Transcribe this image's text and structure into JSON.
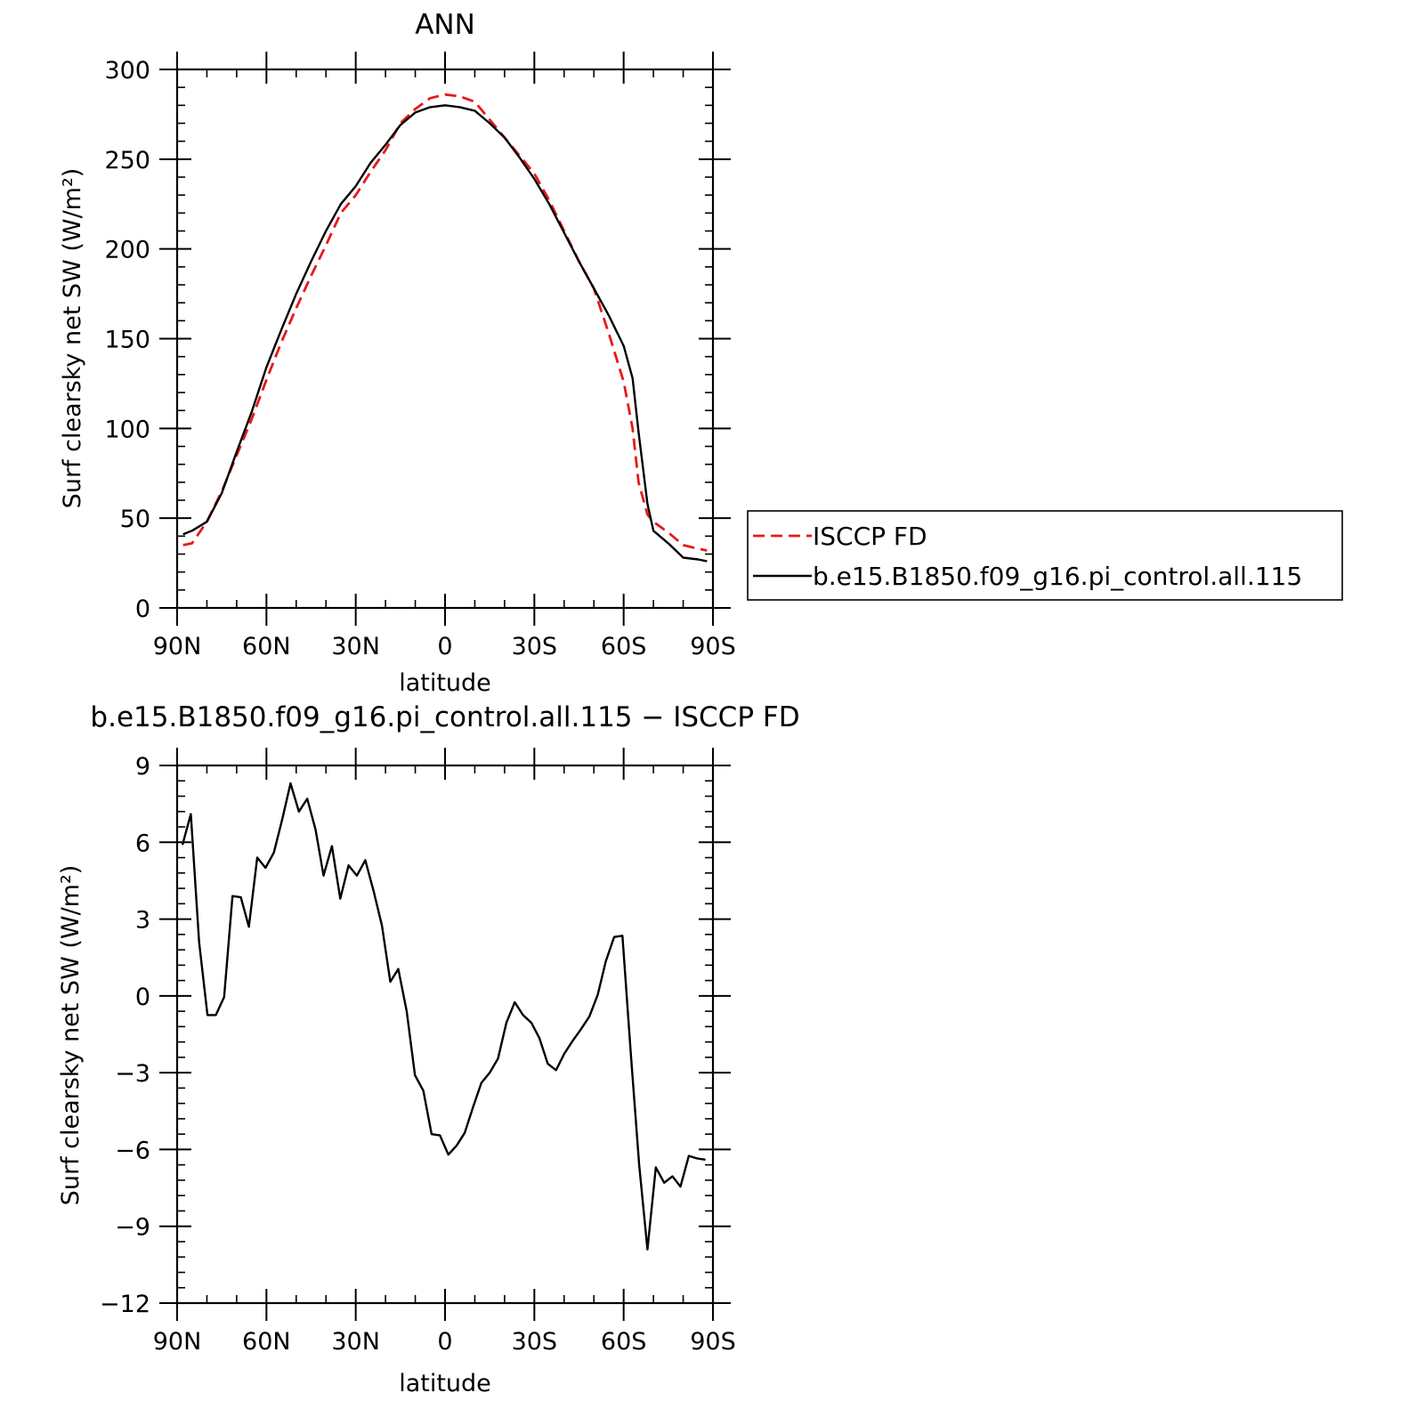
{
  "chart_data": [
    {
      "type": "line",
      "title": "ANN",
      "xlabel": "latitude",
      "ylabel": "Surf clearsky net SW (W/m²)",
      "xlim": [
        90,
        -90
      ],
      "ylim": [
        0,
        300
      ],
      "yticks": [
        0,
        50,
        100,
        150,
        200,
        250,
        300
      ],
      "xticks": [
        {
          "value": 90,
          "label": "90N"
        },
        {
          "value": 60,
          "label": "60N"
        },
        {
          "value": 30,
          "label": "30N"
        },
        {
          "value": 0,
          "label": "0"
        },
        {
          "value": -30,
          "label": "30S"
        },
        {
          "value": -60,
          "label": "60S"
        },
        {
          "value": -90,
          "label": "90S"
        }
      ],
      "legend": {
        "position": "right",
        "entries": [
          "ISCCP FD",
          "b.e15.B1850.f09_g16.pi_control.all.115"
        ]
      },
      "series": [
        {
          "name": "ISCCP FD",
          "color": "#e8191b",
          "dash": "dashed",
          "x": [
            88,
            85,
            80,
            75,
            70,
            65,
            60,
            55,
            50,
            45,
            40,
            35,
            30,
            25,
            20,
            15,
            10,
            5,
            0,
            -5,
            -10,
            -15,
            -20,
            -25,
            -30,
            -35,
            -40,
            -45,
            -50,
            -55,
            -60,
            -63,
            -65,
            -68,
            -70,
            -75,
            -80,
            -85,
            -88
          ],
          "y": [
            35,
            36,
            48,
            65,
            85,
            105,
            127,
            148,
            167,
            185,
            202,
            220,
            230,
            243,
            255,
            270,
            278,
            284,
            286,
            285,
            282,
            272,
            262,
            252,
            242,
            227,
            210,
            193,
            178,
            153,
            126,
            100,
            70,
            52,
            48,
            42,
            35,
            33,
            32
          ]
        },
        {
          "name": "b.e15.B1850.f09_g16.pi_control.all.115",
          "color": "#000000",
          "dash": "solid",
          "x": [
            88,
            85,
            80,
            75,
            70,
            65,
            60,
            55,
            50,
            45,
            40,
            35,
            30,
            25,
            20,
            15,
            10,
            5,
            0,
            -5,
            -10,
            -15,
            -20,
            -25,
            -30,
            -35,
            -40,
            -45,
            -50,
            -55,
            -60,
            -63,
            -65,
            -68,
            -70,
            -75,
            -80,
            -85,
            -88
          ],
          "y": [
            41,
            43,
            48,
            64,
            87,
            109,
            134,
            155,
            175,
            193,
            210,
            225,
            235,
            248,
            258,
            269,
            276,
            279,
            280,
            279,
            277,
            270,
            262,
            251,
            239,
            225,
            209,
            193,
            178,
            163,
            146,
            128,
            98,
            58,
            43,
            36,
            28,
            27,
            26
          ]
        }
      ]
    },
    {
      "type": "line",
      "title": "b.e15.B1850.f09_g16.pi_control.all.115 − ISCCP FD",
      "xlabel": "latitude",
      "ylabel": "Surf clearsky net SW (W/m²)",
      "xlim": [
        90,
        -90
      ],
      "ylim": [
        -12,
        9
      ],
      "yticks": [
        -12,
        -9,
        -6,
        -3,
        0,
        3,
        6,
        9
      ],
      "xticks": [
        {
          "value": 90,
          "label": "90N"
        },
        {
          "value": 60,
          "label": "60N"
        },
        {
          "value": 30,
          "label": "30N"
        },
        {
          "value": 0,
          "label": "0"
        },
        {
          "value": -30,
          "label": "30S"
        },
        {
          "value": -60,
          "label": "60S"
        },
        {
          "value": -90,
          "label": "90S"
        }
      ],
      "series": [
        {
          "color": "#000000",
          "dash": "solid",
          "x": [
            88.2,
            85.4,
            82.6,
            79.8,
            77.0,
            74.2,
            71.4,
            68.6,
            65.9,
            63.1,
            60.3,
            57.5,
            54.7,
            51.9,
            49.1,
            46.3,
            43.5,
            40.8,
            38.0,
            35.2,
            32.4,
            29.6,
            26.8,
            24.0,
            21.2,
            18.4,
            15.7,
            12.9,
            10.1,
            7.3,
            4.5,
            1.7,
            -1.1,
            -3.9,
            -6.6,
            -9.4,
            -12.2,
            -15.0,
            -17.8,
            -20.6,
            -23.4,
            -26.2,
            -29.0,
            -31.7,
            -34.5,
            -37.3,
            -40.1,
            -42.9,
            -45.7,
            -48.5,
            -51.3,
            -54.0,
            -56.8,
            -59.6,
            -62.4,
            -65.2,
            -68.0,
            -70.8,
            -73.6,
            -76.4,
            -79.1,
            -81.9,
            -84.7,
            -87.5
          ],
          "y": [
            5.9,
            7.1,
            2.1,
            -0.75,
            -0.75,
            -0.05,
            3.9,
            3.85,
            2.7,
            5.4,
            5.0,
            5.6,
            6.9,
            8.3,
            7.2,
            7.7,
            6.5,
            4.7,
            5.85,
            3.8,
            5.1,
            4.7,
            5.3,
            4.1,
            2.75,
            0.55,
            1.05,
            -0.6,
            -3.1,
            -3.7,
            -5.4,
            -5.45,
            -6.2,
            -5.85,
            -5.35,
            -4.35,
            -3.4,
            -3.0,
            -2.45,
            -1.05,
            -0.25,
            -0.75,
            -1.05,
            -1.65,
            -2.65,
            -2.9,
            -2.25,
            -1.75,
            -1.3,
            -0.8,
            0.05,
            1.35,
            2.3,
            2.35,
            -2.25,
            -6.6,
            -9.9,
            -6.7,
            -7.3,
            -7.05,
            -7.45,
            -6.25,
            -6.35,
            -6.4
          ]
        }
      ]
    }
  ]
}
